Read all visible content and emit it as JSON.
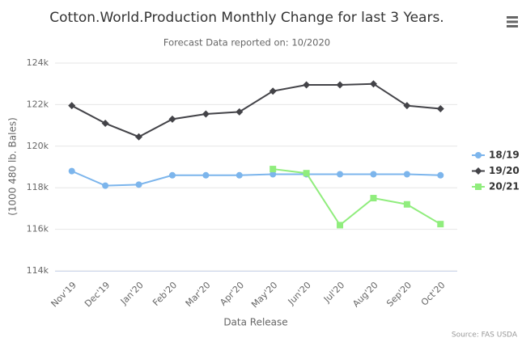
{
  "chart_data": {
    "type": "line",
    "title": "Cotton.World.Production Monthly Change for last 3 Years.",
    "subtitle": "Forecast Data reported on: 10/2020",
    "x_label": "Data Release",
    "y_label": "(1000 480 lb. Bales)",
    "credits": "Source: FAS USDA",
    "categories": [
      "Nov'19",
      "Dec'19",
      "Jan'20",
      "Feb'20",
      "Mar'20",
      "Apr'20",
      "May'20",
      "Jun'20",
      "Jul'20",
      "Aug'20",
      "Sep'20",
      "Oct'20"
    ],
    "series": [
      {
        "name": "18/19",
        "color": "#7cb5ec",
        "marker": "circle",
        "values": [
          118800,
          118100,
          118150,
          118600,
          118600,
          118600,
          118650,
          118650,
          118650,
          118650,
          118650,
          118600
        ]
      },
      {
        "name": "19/20",
        "color": "#434348",
        "marker": "diamond",
        "values": [
          121950,
          121100,
          120450,
          121300,
          121550,
          121650,
          122650,
          122950,
          122950,
          123000,
          121950,
          121800
        ]
      },
      {
        "name": "20/21",
        "color": "#90ed7d",
        "marker": "square",
        "values": [
          null,
          null,
          null,
          null,
          null,
          null,
          118900,
          118700,
          116200,
          117500,
          117200,
          116250
        ]
      }
    ],
    "ylim": [
      114000,
      124000
    ],
    "yticks": [
      {
        "value": 114000,
        "label": "114k"
      },
      {
        "value": 116000,
        "label": "116k"
      },
      {
        "value": 118000,
        "label": "118k"
      },
      {
        "value": 120000,
        "label": "120k"
      },
      {
        "value": 122000,
        "label": "122k"
      },
      {
        "value": 124000,
        "label": "124k"
      }
    ],
    "grid": true,
    "legend": "right"
  }
}
